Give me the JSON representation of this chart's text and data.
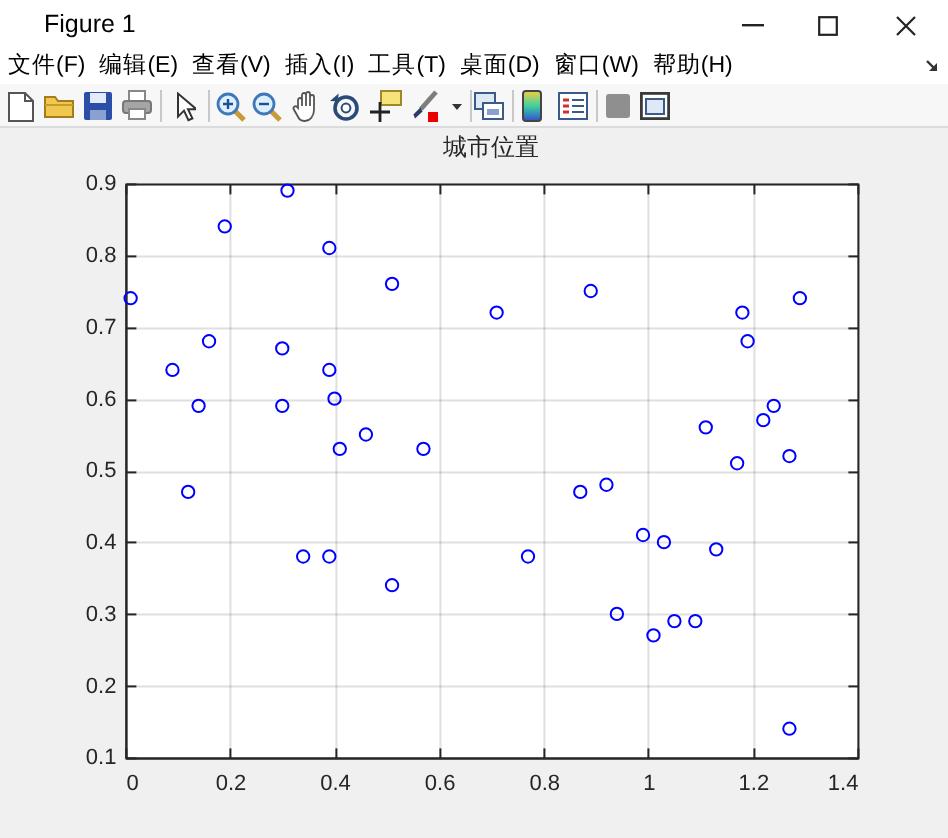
{
  "chart_data": {
    "type": "scatter",
    "title": "城市位置",
    "annotations": [
      "Figure 1",
      "文件(F)",
      "编辑(E)",
      "查看(V)",
      "插入(I)",
      "工具(T)",
      "桌面(D)",
      "窗口(W)",
      "帮助(H)"
    ],
    "x": [
      0.01,
      0.19,
      0.31,
      0.39,
      0.51,
      0.71,
      0.16,
      0.09,
      0.3,
      0.39,
      0.14,
      0.3,
      0.4,
      0.46,
      0.41,
      0.57,
      0.12,
      0.89,
      1.29,
      1.18,
      1.19,
      1.24,
      1.11,
      1.22,
      1.27,
      1.17,
      0.92,
      0.87,
      0.34,
      0.39,
      0.51,
      0.77,
      0.99,
      1.03,
      1.13,
      0.94,
      1.05,
      1.09,
      1.01,
      1.27
    ],
    "values": [
      0.74,
      0.84,
      0.89,
      0.81,
      0.76,
      0.72,
      0.68,
      0.64,
      0.67,
      0.64,
      0.59,
      0.59,
      0.6,
      0.55,
      0.53,
      0.53,
      0.47,
      0.75,
      0.74,
      0.72,
      0.68,
      0.59,
      0.56,
      0.57,
      0.52,
      0.51,
      0.48,
      0.47,
      0.38,
      0.38,
      0.34,
      0.38,
      0.41,
      0.4,
      0.39,
      0.3,
      0.29,
      0.29,
      0.27,
      0.14
    ],
    "color": "#0000ff",
    "marker": "circle",
    "grid": true,
    "xlim": [
      0,
      1.4
    ],
    "xticks": [
      0,
      0.2,
      0.4,
      0.6,
      0.8,
      1,
      1.2,
      1.4
    ],
    "ylim": [
      0.1,
      0.9
    ],
    "yticks": [
      0.1,
      0.2,
      0.3,
      0.4,
      0.5,
      0.6,
      0.7,
      0.8,
      0.9
    ]
  }
}
